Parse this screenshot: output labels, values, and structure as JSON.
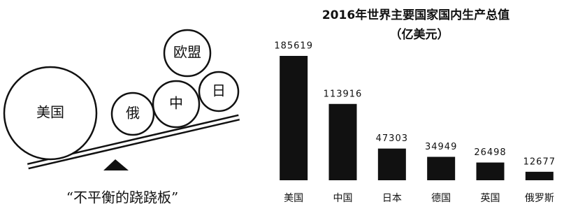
{
  "illustration": {
    "labels": [
      "美国",
      "俄",
      "中",
      "欧盟",
      "日"
    ],
    "caption": "“不平衡的跷跷板”"
  },
  "chart_data": {
    "type": "bar",
    "title": "2016年世界主要国家国内生产总值",
    "subtitle": "（亿美元）",
    "categories": [
      "美国",
      "中国",
      "日本",
      "德国",
      "英国",
      "俄罗斯"
    ],
    "values": [
      185619,
      113916,
      47303,
      34949,
      26498,
      12677
    ],
    "color": "#111111"
  }
}
